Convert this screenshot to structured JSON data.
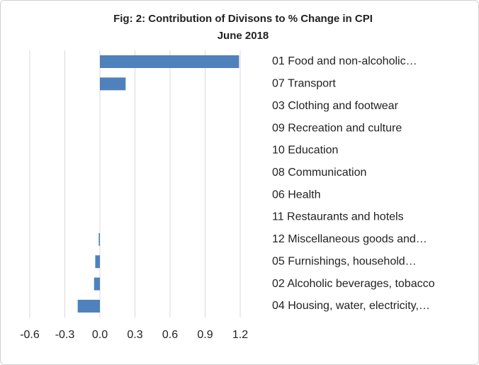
{
  "chart_data": {
    "type": "hbar",
    "title": "Fig: 2: Contribution of Divisons to % Change in CPI",
    "subtitle": "June 2018",
    "categories": [
      "01 Food and non-alcoholic…",
      "07 Transport",
      "03 Clothing and footwear",
      "09 Recreation and culture",
      "10 Education",
      "08 Communication",
      "06 Health",
      "11 Restaurants and hotels",
      "12 Miscellaneous goods and…",
      "05 Furnishings, household…",
      "02 Alcoholic beverages, tobacco",
      "04 Housing, water, electricity,…"
    ],
    "values": [
      1.19,
      0.22,
      0,
      0,
      0,
      0,
      0,
      0,
      -0.01,
      -0.04,
      -0.05,
      -0.19
    ],
    "color": "#4f81bd",
    "xlim": [
      -0.6,
      1.2
    ],
    "xticks": [
      -0.6,
      -0.3,
      {
        "value": 0,
        "label": "0.0"
      },
      0.3,
      0.6,
      0.9,
      1.2
    ],
    "grid": true
  }
}
